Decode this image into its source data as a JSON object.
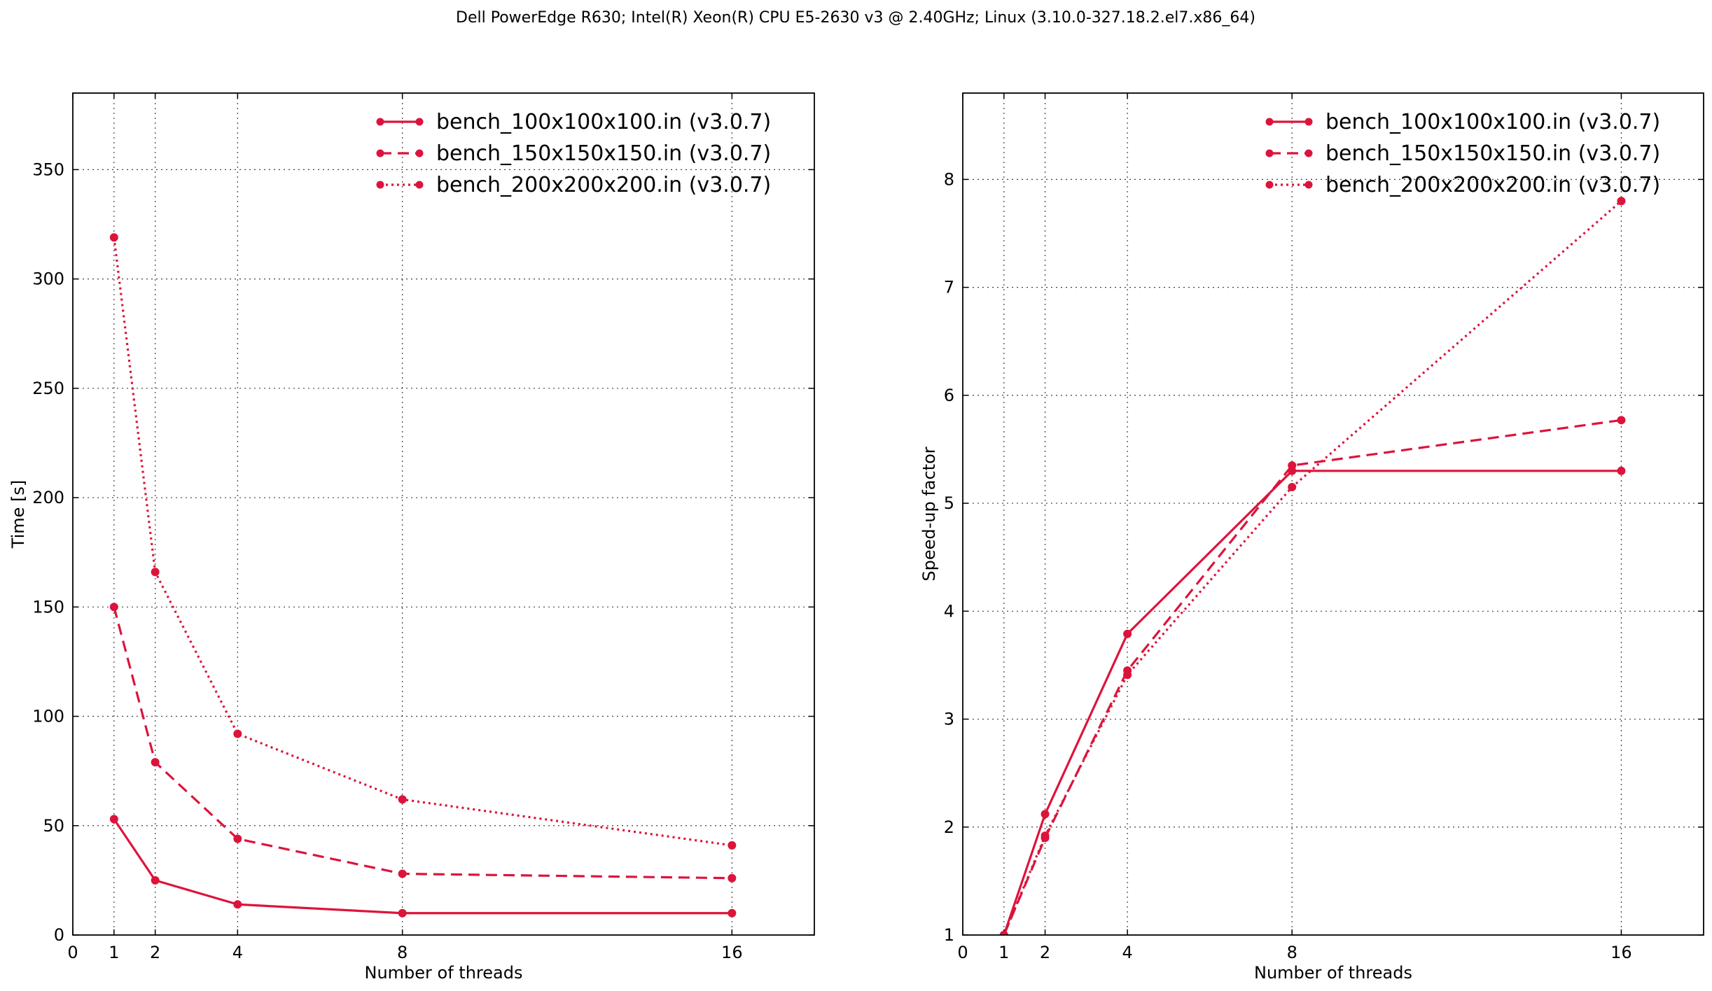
{
  "figure_title": "Dell PowerEdge R630; Intel(R) Xeon(R) CPU E5-2630 v3 @ 2.40GHz; Linux (3.10.0-327.18.2.el7.x86_64)",
  "colors": {
    "series": "#dc143c",
    "grid": "#000000",
    "text": "#000000"
  },
  "chart_data": [
    {
      "type": "line",
      "xlabel": "Number of threads",
      "ylabel": "Time [s]",
      "xlim": [
        0,
        18
      ],
      "ylim": [
        0,
        385
      ],
      "xticks": [
        0,
        1,
        2,
        4,
        8,
        16
      ],
      "yticks": [
        0,
        50,
        100,
        150,
        200,
        250,
        300,
        350
      ],
      "xgrid": [
        1,
        2,
        4,
        8,
        16
      ],
      "ygrid": [
        50,
        100,
        150,
        200,
        250,
        300,
        350
      ],
      "grid": true,
      "legend_position": "top-right",
      "x": [
        1,
        2,
        4,
        8,
        16
      ],
      "series": [
        {
          "name": "bench_100x100x100.in (v3.0.7)",
          "linestyle": "solid",
          "values": [
            53,
            25,
            14,
            10,
            10
          ]
        },
        {
          "name": "bench_150x150x150.in (v3.0.7)",
          "linestyle": "dashed",
          "values": [
            150,
            79,
            44,
            28,
            26
          ]
        },
        {
          "name": "bench_200x200x200.in (v3.0.7)",
          "linestyle": "dotted",
          "values": [
            319,
            166,
            92,
            62,
            41
          ]
        }
      ]
    },
    {
      "type": "line",
      "xlabel": "Number of threads",
      "ylabel": "Speed-up factor",
      "xlim": [
        0,
        18
      ],
      "ylim": [
        1,
        8.8
      ],
      "xticks": [
        0,
        1,
        2,
        4,
        8,
        16
      ],
      "yticks": [
        1,
        2,
        3,
        4,
        5,
        6,
        7,
        8
      ],
      "xgrid": [
        1,
        2,
        4,
        8,
        16
      ],
      "ygrid": [
        2,
        3,
        4,
        5,
        6,
        7,
        8
      ],
      "grid": true,
      "legend_position": "top-right",
      "x": [
        1,
        2,
        4,
        8,
        16
      ],
      "series": [
        {
          "name": "bench_100x100x100.in (v3.0.7)",
          "linestyle": "solid",
          "values": [
            1.0,
            2.12,
            3.79,
            5.3,
            5.3
          ]
        },
        {
          "name": "bench_150x150x150.in (v3.0.7)",
          "linestyle": "dashed",
          "values": [
            1.0,
            1.9,
            3.45,
            5.35,
            5.77
          ]
        },
        {
          "name": "bench_200x200x200.in (v3.0.7)",
          "linestyle": "dotted",
          "values": [
            1.0,
            1.92,
            3.41,
            5.15,
            7.8
          ]
        }
      ]
    }
  ]
}
